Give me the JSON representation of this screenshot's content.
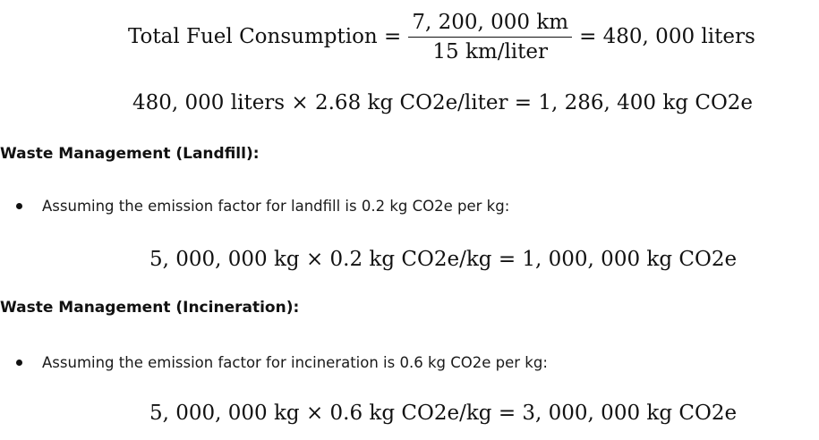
{
  "equations": {
    "fuel": {
      "lhs": "Total Fuel Consumption =",
      "numerator": "7, 200, 000 km",
      "denominator": "15 km/liter",
      "rhs": "= 480, 000 liters"
    },
    "co2": "480, 000 liters × 2.68 kg CO2e/liter = 1, 286, 400 kg CO2e",
    "landfill": "5, 000, 000 kg × 0.2 kg CO2e/kg = 1, 000, 000 kg CO2e",
    "incineration": "5, 000, 000 kg × 0.6 kg CO2e/kg = 3, 000, 000 kg CO2e"
  },
  "sections": {
    "landfill": {
      "heading": "Waste Management (Landfill):",
      "bullet": "Assuming the emission factor for landfill is 0.2 kg CO2e per kg:"
    },
    "incineration": {
      "heading": "Waste Management (Incineration):",
      "bullet": "Assuming the emission factor for incineration is 0.6 kg CO2e per kg:"
    }
  }
}
